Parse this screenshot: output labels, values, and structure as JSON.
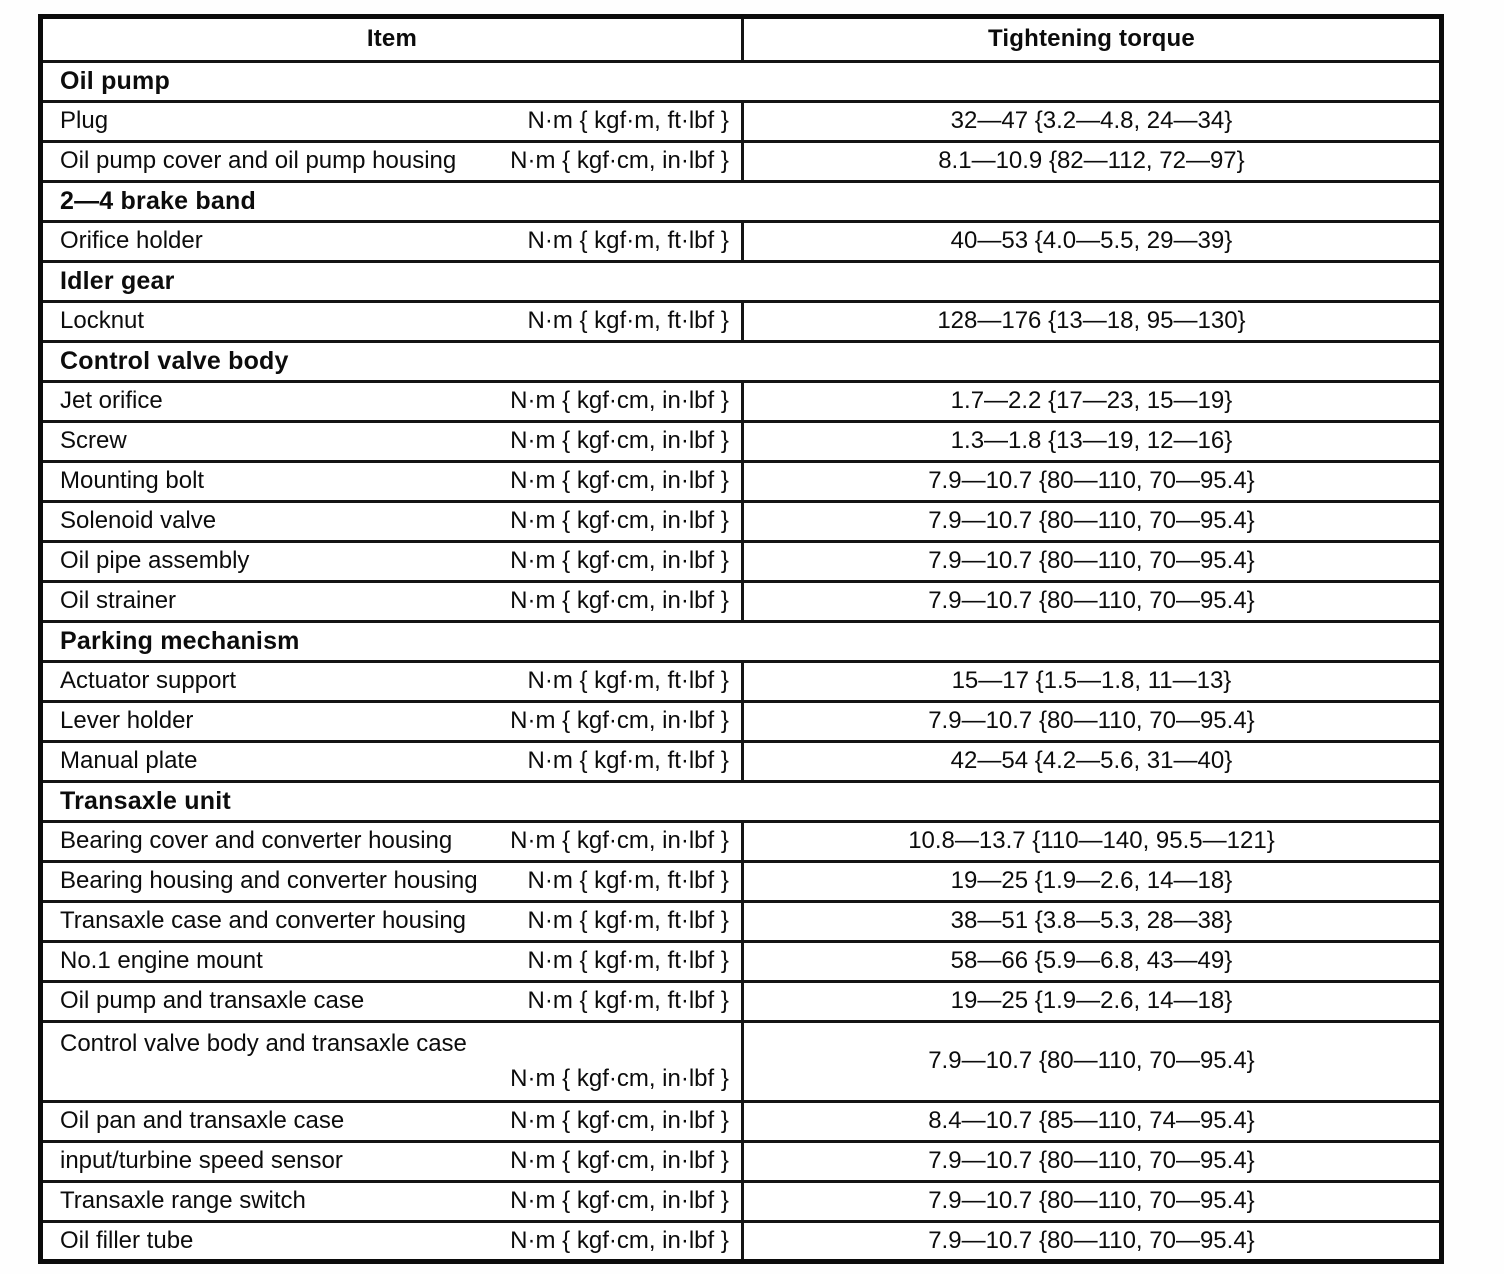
{
  "page": {
    "kind": "scanned manual page",
    "background_color": "#ffffff",
    "ink_color": "#0c0c0c"
  },
  "table": {
    "columns": {
      "item": "Item",
      "torque": "Tightening torque"
    },
    "sections": [
      {
        "title": "Oil pump",
        "rows": [
          {
            "item": "Plug",
            "unit": "N·m { kgf·m, ft·lbf }",
            "torque": "32—47 {3.2—4.8, 24—34}"
          },
          {
            "item": "Oil pump cover and oil pump housing",
            "unit": "N·m { kgf·cm, in·lbf }",
            "torque": "8.1—10.9 {82—112, 72—97}"
          }
        ]
      },
      {
        "title": "2—4 brake band",
        "rows": [
          {
            "item": "Orifice holder",
            "unit": "N·m { kgf·m, ft·lbf }",
            "torque": "40—53 {4.0—5.5, 29—39}"
          }
        ]
      },
      {
        "title": "Idler gear",
        "rows": [
          {
            "item": "Locknut",
            "unit": "N·m { kgf·m, ft·lbf }",
            "torque": "128—176 {13—18, 95—130}"
          }
        ]
      },
      {
        "title": "Control valve body",
        "rows": [
          {
            "item": "Jet orifice",
            "unit": "N·m { kgf·cm, in·lbf }",
            "torque": "1.7—2.2 {17—23, 15—19}"
          },
          {
            "item": "Screw",
            "unit": "N·m { kgf·cm, in·lbf }",
            "torque": "1.3—1.8 {13—19, 12—16}"
          },
          {
            "item": "Mounting bolt",
            "unit": "N·m { kgf·cm, in·lbf }",
            "torque": "7.9—10.7 {80—110, 70—95.4}"
          },
          {
            "item": "Solenoid valve",
            "unit": "N·m { kgf·cm, in·lbf }",
            "torque": "7.9—10.7 {80—110, 70—95.4}"
          },
          {
            "item": "Oil pipe assembly",
            "unit": "N·m { kgf·cm, in·lbf }",
            "torque": "7.9—10.7 {80—110, 70—95.4}"
          },
          {
            "item": "Oil strainer",
            "unit": "N·m { kgf·cm, in·lbf }",
            "torque": "7.9—10.7 {80—110, 70—95.4}"
          }
        ]
      },
      {
        "title": "Parking mechanism",
        "rows": [
          {
            "item": "Actuator support",
            "unit": "N·m { kgf·m, ft·lbf }",
            "torque": "15—17 {1.5—1.8, 11—13}"
          },
          {
            "item": "Lever holder",
            "unit": "N·m { kgf·cm, in·lbf }",
            "torque": "7.9—10.7 {80—110, 70—95.4}"
          },
          {
            "item": "Manual plate",
            "unit": "N·m { kgf·m, ft·lbf }",
            "torque": "42—54 {4.2—5.6, 31—40}"
          }
        ]
      },
      {
        "title": "Transaxle unit",
        "rows": [
          {
            "item": "Bearing cover and converter housing",
            "unit": "N·m { kgf·cm, in·lbf }",
            "torque": "10.8—13.7 {110—140, 95.5—121}"
          },
          {
            "item": "Bearing housing and converter housing",
            "unit": "N·m { kgf·m, ft·lbf }",
            "torque": "19—25 {1.9—2.6, 14—18}"
          },
          {
            "item": "Transaxle case and converter housing",
            "unit": "N·m { kgf·m, ft·lbf }",
            "torque": "38—51 {3.8—5.3, 28—38}"
          },
          {
            "item": "No.1 engine mount",
            "unit": "N·m { kgf·m, ft·lbf }",
            "torque": "58—66 {5.9—6.8, 43—49}"
          },
          {
            "item": "Oil pump and transaxle case",
            "unit": "N·m { kgf·m, ft·lbf }",
            "torque": "19—25 {1.9—2.6, 14—18}"
          },
          {
            "item": "Control valve body and transaxle case",
            "unit": "N·m { kgf·cm, in·lbf }",
            "torque": "7.9—10.7 {80—110, 70—95.4}",
            "two_line": true
          },
          {
            "item": "Oil pan and transaxle case",
            "unit": "N·m { kgf·cm, in·lbf }",
            "torque": "8.4—10.7 {85—110, 74—95.4}"
          },
          {
            "item": "input/turbine speed sensor",
            "unit": "N·m { kgf·cm, in·lbf }",
            "torque": "7.9—10.7 {80—110, 70—95.4}"
          },
          {
            "item": "Transaxle range switch",
            "unit": "N·m { kgf·cm, in·lbf }",
            "torque": "7.9—10.7 {80—110, 70—95.4}"
          },
          {
            "item": "Oil filler tube",
            "unit": "N·m { kgf·cm, in·lbf }",
            "torque": "7.9—10.7 {80—110, 70—95.4}"
          }
        ]
      }
    ]
  }
}
